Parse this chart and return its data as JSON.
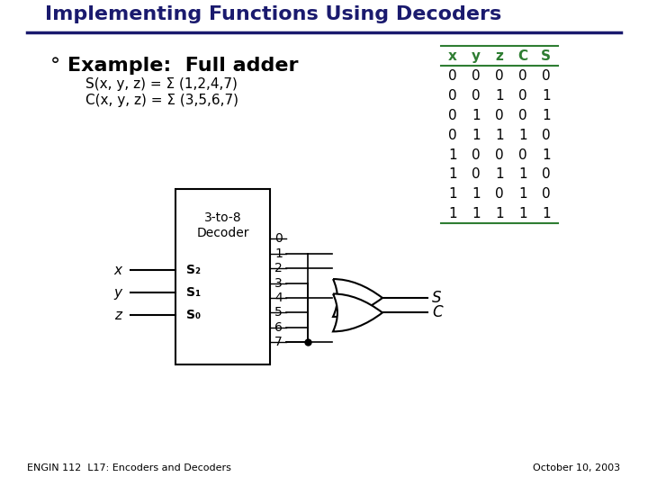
{
  "title": "Implementing Functions Using Decoders",
  "background_color": "#ffffff",
  "title_color": "#1a1a6e",
  "title_fontsize": 16,
  "footer_left": "ENGIN 112  L17: Encoders and Decoders",
  "footer_right": "October 10, 2003",
  "example_title": "Example:  Full adder",
  "bullet": "°",
  "eq1": "S(x, y, z) = Σ (1,2,4,7)",
  "eq2": "C(x, y, z) = Σ (3,5,6,7)",
  "table_headers": [
    "x",
    "y",
    "z",
    "C",
    "S"
  ],
  "table_data": [
    [
      0,
      0,
      0,
      0,
      0
    ],
    [
      0,
      0,
      1,
      0,
      1
    ],
    [
      0,
      1,
      0,
      0,
      1
    ],
    [
      0,
      1,
      1,
      1,
      0
    ],
    [
      1,
      0,
      0,
      0,
      1
    ],
    [
      1,
      0,
      1,
      1,
      0
    ],
    [
      1,
      1,
      0,
      1,
      0
    ],
    [
      1,
      1,
      1,
      1,
      1
    ]
  ],
  "table_color": "#2e7d32",
  "decoder_label": "3-to-8\nDecoder",
  "input_labels": [
    "x",
    "y",
    "z"
  ],
  "input_sublabels": [
    "S₂",
    "S₁",
    "S₀"
  ],
  "output_nums": [
    "0",
    "1",
    "2",
    "3",
    "4",
    "5",
    "6",
    "7"
  ],
  "gate_S_inputs": [
    1,
    2,
    4,
    7
  ],
  "gate_C_inputs": [
    3,
    5,
    6,
    7
  ],
  "gate_S_label": "S",
  "gate_C_label": "C",
  "line_color": "#000000",
  "text_color": "#000000"
}
